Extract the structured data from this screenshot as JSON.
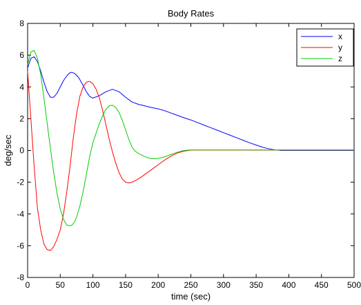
{
  "chart_data": {
    "type": "line",
    "title": "Body Rates",
    "xlabel": "time (sec)",
    "ylabel": "deg/sec",
    "xlim": [
      0,
      500
    ],
    "ylim": [
      -8,
      8
    ],
    "xticks": [
      0,
      50,
      100,
      150,
      200,
      250,
      300,
      350,
      400,
      450,
      500
    ],
    "yticks": [
      -8,
      -6,
      -4,
      -2,
      0,
      2,
      4,
      6,
      8
    ],
    "grid": false,
    "legend_position": "top-right",
    "series": [
      {
        "name": "x",
        "color": "#0000ff",
        "x": [
          0,
          5,
          10,
          15,
          20,
          25,
          30,
          35,
          40,
          45,
          50,
          55,
          60,
          65,
          68,
          72,
          78,
          85,
          90,
          95,
          100,
          110,
          120,
          130,
          140,
          150,
          160,
          170,
          180,
          190,
          200,
          210,
          220,
          230,
          240,
          250,
          260,
          270,
          280,
          290,
          300,
          310,
          320,
          330,
          340,
          350,
          360,
          370,
          380,
          388,
          390,
          400,
          420,
          440,
          460,
          480,
          500
        ],
        "y": [
          5.2,
          5.8,
          5.9,
          5.6,
          5.0,
          4.3,
          3.7,
          3.35,
          3.35,
          3.6,
          4.0,
          4.4,
          4.7,
          4.9,
          4.92,
          4.85,
          4.6,
          4.1,
          3.7,
          3.4,
          3.3,
          3.45,
          3.7,
          3.85,
          3.7,
          3.35,
          3.05,
          2.9,
          2.8,
          2.7,
          2.62,
          2.5,
          2.35,
          2.2,
          2.05,
          1.92,
          1.76,
          1.6,
          1.44,
          1.28,
          1.12,
          0.96,
          0.8,
          0.64,
          0.48,
          0.34,
          0.2,
          0.1,
          0.03,
          0.0,
          0.0,
          0.0,
          0.0,
          0.0,
          0.0,
          0.0,
          0.0
        ]
      },
      {
        "name": "y",
        "color": "#ff0000",
        "x": [
          0,
          5,
          10,
          15,
          20,
          25,
          30,
          35,
          40,
          45,
          50,
          55,
          60,
          65,
          70,
          75,
          80,
          85,
          90,
          95,
          100,
          105,
          110,
          115,
          120,
          125,
          130,
          135,
          140,
          145,
          150,
          155,
          160,
          165,
          170,
          175,
          180,
          190,
          200,
          210,
          220,
          230,
          240,
          250,
          260,
          280,
          300,
          350,
          400,
          450,
          500
        ],
        "y": [
          5.0,
          2.0,
          -1.0,
          -3.6,
          -5.0,
          -5.9,
          -6.25,
          -6.3,
          -6.05,
          -5.6,
          -5.0,
          -4.0,
          -2.6,
          -1.0,
          0.8,
          2.3,
          3.4,
          4.0,
          4.3,
          4.35,
          4.2,
          3.85,
          3.3,
          2.5,
          1.6,
          0.7,
          -0.1,
          -0.8,
          -1.4,
          -1.8,
          -2.0,
          -2.05,
          -2.0,
          -1.9,
          -1.78,
          -1.65,
          -1.5,
          -1.2,
          -0.9,
          -0.6,
          -0.35,
          -0.15,
          -0.04,
          0.02,
          0.02,
          0.02,
          0.02,
          0.02,
          0.02,
          0.02,
          0.02
        ]
      },
      {
        "name": "z",
        "color": "#00cc00",
        "x": [
          0,
          5,
          10,
          15,
          20,
          25,
          30,
          35,
          40,
          45,
          50,
          55,
          60,
          65,
          68,
          72,
          75,
          80,
          85,
          90,
          95,
          100,
          105,
          110,
          115,
          120,
          125,
          130,
          135,
          140,
          145,
          150,
          155,
          160,
          165,
          170,
          175,
          180,
          185,
          190,
          195,
          200,
          210,
          220,
          230,
          240,
          250,
          260,
          280,
          300,
          350,
          400,
          450,
          500
        ],
        "y": [
          5.4,
          6.2,
          6.3,
          5.8,
          4.8,
          3.3,
          1.7,
          0.1,
          -1.4,
          -2.7,
          -3.7,
          -4.35,
          -4.7,
          -4.75,
          -4.7,
          -4.5,
          -4.2,
          -3.5,
          -2.6,
          -1.5,
          -0.4,
          0.5,
          1.1,
          1.7,
          2.2,
          2.6,
          2.8,
          2.85,
          2.7,
          2.4,
          1.9,
          1.3,
          0.7,
          0.2,
          -0.05,
          -0.2,
          -0.3,
          -0.4,
          -0.48,
          -0.52,
          -0.52,
          -0.5,
          -0.4,
          -0.25,
          -0.1,
          0.0,
          0.03,
          0.03,
          0.03,
          0.03,
          0.03,
          0.03,
          0.03,
          0.03
        ]
      }
    ]
  }
}
